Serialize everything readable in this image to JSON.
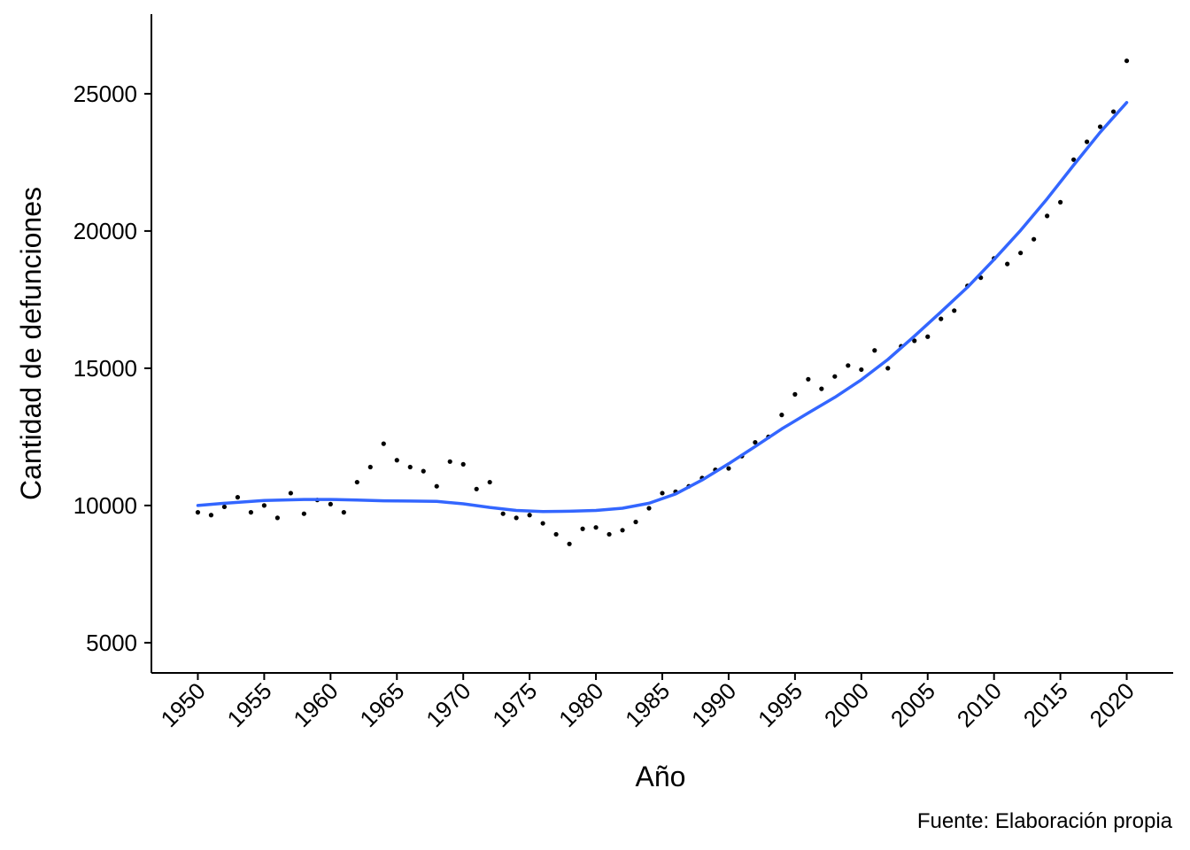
{
  "chart_data": {
    "type": "scatter",
    "title": "",
    "xlabel": "Año",
    "ylabel": "Cantidad de defunciones",
    "caption": "Fuente: Elaboración propia",
    "xlim": [
      1946.5,
      2023.5
    ],
    "ylim": [
      3900,
      27900
    ],
    "x_ticks": [
      1950,
      1955,
      1960,
      1965,
      1970,
      1975,
      1980,
      1985,
      1990,
      1995,
      2000,
      2005,
      2010,
      2015,
      2020
    ],
    "y_ticks": [
      5000,
      10000,
      15000,
      20000,
      25000
    ],
    "grid": false,
    "legend": "none",
    "colors": {
      "points": "#000000",
      "trend": "#3366FF",
      "axis": "#000000"
    },
    "series": [
      {
        "type": "scatter",
        "x": [
          1950,
          1951,
          1952,
          1953,
          1954,
          1955,
          1956,
          1957,
          1958,
          1959,
          1960,
          1961,
          1962,
          1963,
          1964,
          1965,
          1966,
          1967,
          1968,
          1969,
          1970,
          1971,
          1972,
          1973,
          1974,
          1975,
          1976,
          1977,
          1978,
          1979,
          1980,
          1981,
          1982,
          1983,
          1984,
          1985,
          1986,
          1987,
          1988,
          1989,
          1990,
          1991,
          1992,
          1993,
          1994,
          1995,
          1996,
          1997,
          1998,
          1999,
          2000,
          2001,
          2002,
          2003,
          2004,
          2005,
          2006,
          2007,
          2008,
          2009,
          2010,
          2011,
          2012,
          2013,
          2014,
          2015,
          2016,
          2017,
          2018,
          2019,
          2020
        ],
        "y": [
          9750,
          9650,
          9950,
          10300,
          9750,
          10000,
          9550,
          10450,
          9700,
          10200,
          10050,
          9750,
          10850,
          11400,
          12250,
          11650,
          11400,
          11250,
          10700,
          11600,
          11500,
          10600,
          10850,
          9700,
          9550,
          9650,
          9350,
          8950,
          8600,
          9150,
          9200,
          8950,
          9100,
          9400,
          9900,
          10450,
          10500,
          10700,
          11000,
          11300,
          11350,
          11800,
          12300,
          12500,
          13300,
          14050,
          14600,
          14250,
          14700,
          15100,
          14950,
          15650,
          15000,
          15800,
          16000,
          16150,
          16800,
          17100,
          18000,
          18300,
          19000,
          18800,
          19200,
          19700,
          20550,
          21050,
          22600,
          23250,
          23800,
          24350,
          26200
        ]
      },
      {
        "type": "line",
        "x": [
          1950,
          1952,
          1955,
          1958,
          1960,
          1962,
          1964,
          1966,
          1968,
          1970,
          1972,
          1974,
          1976,
          1978,
          1980,
          1982,
          1984,
          1986,
          1988,
          1990,
          1992,
          1994,
          1996,
          1998,
          2000,
          2002,
          2004,
          2006,
          2008,
          2010,
          2012,
          2014,
          2016,
          2018,
          2020
        ],
        "y": [
          10000,
          10080,
          10180,
          10220,
          10220,
          10200,
          10170,
          10160,
          10150,
          10060,
          9930,
          9820,
          9780,
          9790,
          9820,
          9900,
          10080,
          10420,
          10930,
          11520,
          12150,
          12790,
          13370,
          13940,
          14580,
          15320,
          16170,
          17050,
          17950,
          18960,
          20020,
          21170,
          22400,
          23600,
          24680
        ]
      }
    ]
  }
}
